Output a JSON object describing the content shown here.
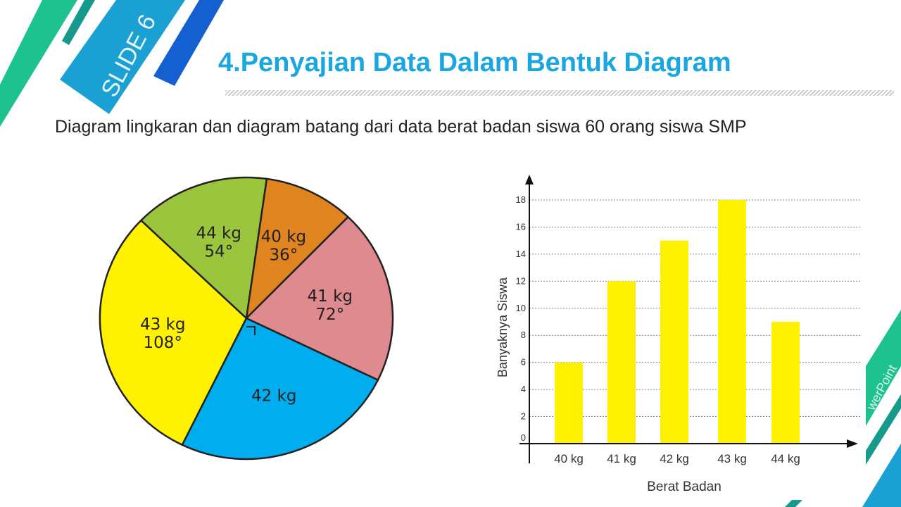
{
  "slide": {
    "label": "SLIDE 6",
    "title": "4.Penyajian Data Dalam Bentuk Diagram",
    "subtitle": "Diagram lingkaran dan diagram batang dari data berat badan siswa 60 orang siswa SMP",
    "corner_text": "werPoint"
  },
  "colors": {
    "title": "#1aa6e0",
    "green": "#1ec28e",
    "teal": "#159a8c",
    "blue": "#1aa0d2",
    "darkblue": "#1560d0"
  },
  "chart_data": [
    {
      "type": "pie",
      "slices": [
        {
          "label": "44 kg",
          "angle_label": "54°",
          "degrees": 54,
          "color": "#9bc53d"
        },
        {
          "label": "40 kg",
          "angle_label": "36°",
          "degrees": 36,
          "color": "#e0841f"
        },
        {
          "label": "41 kg",
          "angle_label": "72°",
          "degrees": 72,
          "color": "#de8a8f"
        },
        {
          "label": "42 kg",
          "angle_label": "",
          "degrees": 90,
          "color": "#00aeef"
        },
        {
          "label": "43 kg",
          "angle_label": "108°",
          "degrees": 108,
          "color": "#fff200"
        }
      ]
    },
    {
      "type": "bar",
      "categories": [
        "40 kg",
        "41 kg",
        "42 kg",
        "43 kg",
        "44 kg"
      ],
      "values": [
        6,
        12,
        15,
        18,
        9
      ],
      "xlabel": "Berat Badan",
      "ylabel": "Banyaknya Siswa",
      "ylim": [
        0,
        18
      ],
      "yticks": [
        0,
        2,
        4,
        6,
        8,
        10,
        12,
        14,
        16,
        18
      ],
      "grid": true,
      "bar_color": "#fff200"
    }
  ]
}
